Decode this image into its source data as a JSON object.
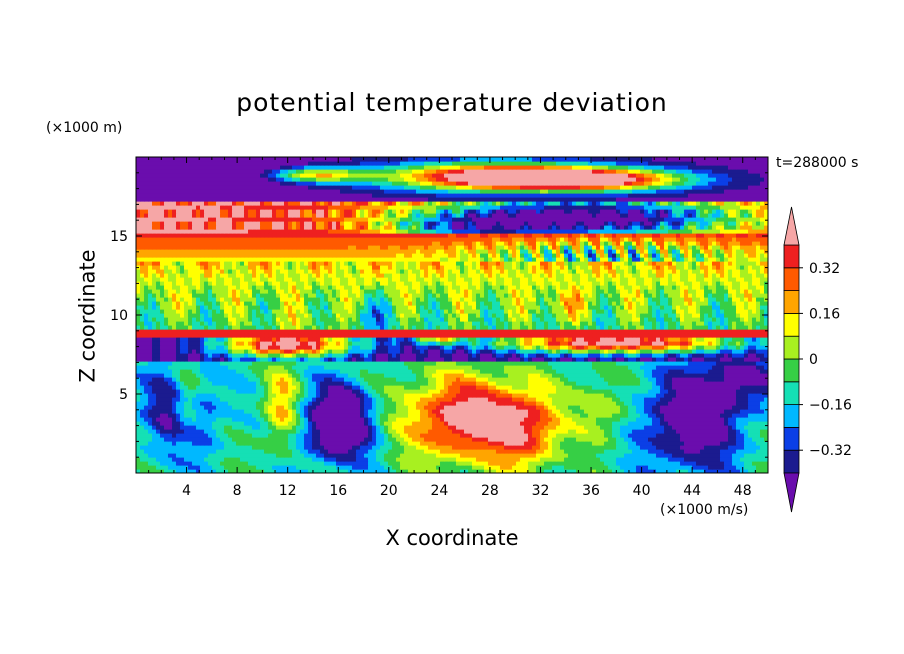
{
  "chart_data": {
    "type": "heatmap",
    "title": "potential temperature deviation",
    "xlabel": "X coordinate",
    "ylabel": "Z coordinate",
    "x_unit": "(×1000 m/s)",
    "y_unit": "(×1000 m)",
    "time_label": "t=288000 s",
    "xlim": [
      0,
      50
    ],
    "ylim": [
      0,
      20
    ],
    "x_ticks": [
      4,
      8,
      12,
      16,
      20,
      24,
      28,
      32,
      36,
      40,
      44,
      48
    ],
    "y_ticks": [
      5,
      10,
      15
    ],
    "colorbar": {
      "levels": [
        -0.4,
        -0.32,
        -0.24,
        -0.16,
        -0.08,
        0,
        0.08,
        0.16,
        0.24,
        0.32,
        0.4
      ],
      "tick_labels": [
        "−0.32",
        "−0.16",
        "0",
        "0.16",
        "0.32"
      ],
      "tick_values": [
        -0.32,
        -0.16,
        0,
        0.16,
        0.32
      ],
      "colors": [
        "#6a0dad",
        "#1b1b8f",
        "#0b3fe6",
        "#00b8ff",
        "#15e0b5",
        "#36cf45",
        "#a8f020",
        "#ffff00",
        "#ffa500",
        "#ff5a00",
        "#ee2020",
        "#f6a6a6"
      ],
      "extend": "both"
    },
    "legend": "right"
  }
}
